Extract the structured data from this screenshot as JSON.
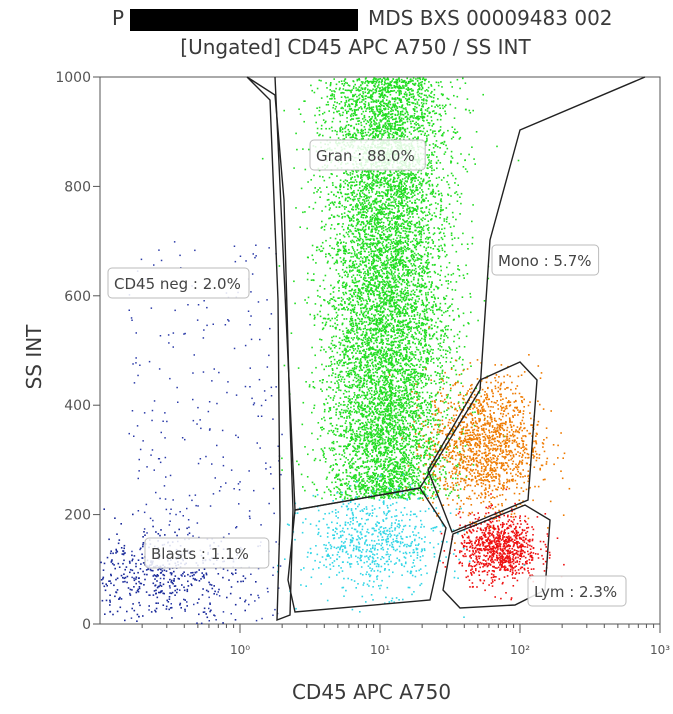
{
  "title_prefix": "P",
  "title_suffix": "MDS BXS 00009483 002",
  "subtitle": "[Ungated] CD45 APC A750 / SS INT",
  "chart_data": {
    "type": "scatter",
    "xlabel": "CD45 APC A750",
    "ylabel": "SS INT",
    "x_scale": "log",
    "xlim": [
      0.1,
      1000
    ],
    "ylim": [
      0,
      1000
    ],
    "x_ticks": [
      {
        "value": 1,
        "label": "10⁰"
      },
      {
        "value": 10,
        "label": "10¹"
      },
      {
        "value": 100,
        "label": "10²"
      },
      {
        "value": 1000,
        "label": "10³"
      }
    ],
    "y_ticks": [
      0,
      200,
      400,
      600,
      800,
      1000
    ],
    "grid": false,
    "populations": [
      {
        "name": "Gran",
        "label": "Gran : 88.0%",
        "percent": 88.0,
        "color": "#22dd22",
        "center": [
          11,
          750
        ],
        "spread": [
          0.22,
          260
        ]
      },
      {
        "name": "Mono",
        "label": "Mono : 5.7%",
        "percent": 5.7,
        "color": "#ee7a00",
        "center": [
          55,
          330
        ],
        "spread": [
          0.2,
          60
        ]
      },
      {
        "name": "Lym",
        "label": "Lym : 2.3%",
        "percent": 2.3,
        "color": "#ee1111",
        "center": [
          70,
          140
        ],
        "spread": [
          0.14,
          30
        ]
      },
      {
        "name": "Blasts",
        "label": "Blasts : 1.1%",
        "percent": 1.1,
        "color": "#33d6e6",
        "center": [
          9,
          150
        ],
        "spread": [
          0.25,
          45
        ]
      },
      {
        "name": "CD45 neg",
        "label": "CD45 neg : 2.0%",
        "percent": 2.0,
        "color": "#1a2a9a",
        "center": [
          0.25,
          90
        ],
        "spread": [
          0.3,
          40
        ]
      }
    ]
  }
}
